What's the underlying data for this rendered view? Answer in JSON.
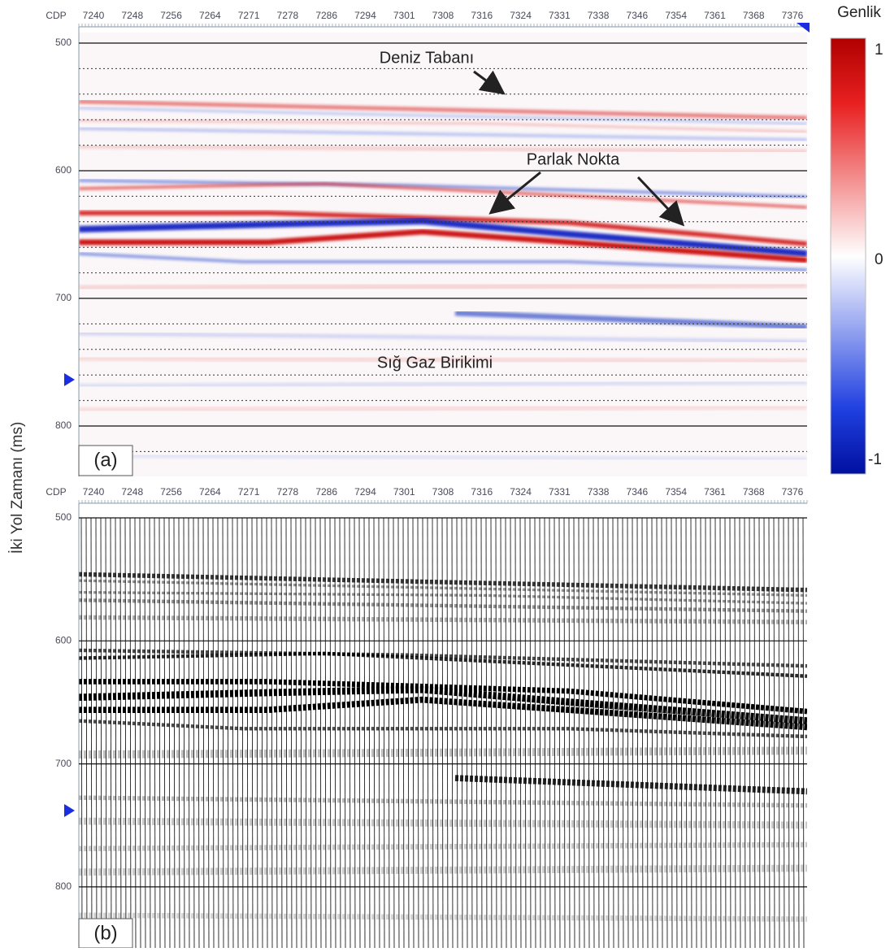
{
  "y_axis_label": "İki Yol Zamanı (ms)",
  "colorbar": {
    "title": "Genlik",
    "labels": [
      1,
      0,
      -1
    ]
  },
  "panels": [
    {
      "label": "(a)",
      "cdp_label": "CDP",
      "cdp_ticks": [
        7240,
        7248,
        7256,
        7264,
        7271,
        7278,
        7286,
        7294,
        7301,
        7308,
        7316,
        7324,
        7331,
        7338,
        7346,
        7354,
        7361,
        7368,
        7376
      ],
      "time_ticks": [
        500,
        600,
        700,
        800
      ],
      "annotations": [
        "Deniz Tabanı",
        "Parlak Nokta",
        "Sığ Gaz Birikimi"
      ]
    },
    {
      "label": "(b)",
      "cdp_label": "CDP",
      "cdp_ticks": [
        7240,
        7248,
        7256,
        7264,
        7271,
        7278,
        7286,
        7294,
        7301,
        7308,
        7316,
        7324,
        7331,
        7338,
        7346,
        7354,
        7361,
        7368,
        7376
      ],
      "time_ticks": [
        500,
        600,
        700,
        800
      ]
    }
  ]
}
